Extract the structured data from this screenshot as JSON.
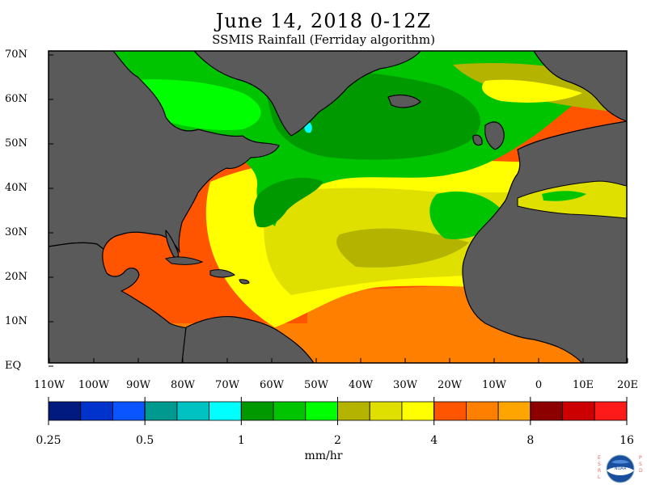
{
  "title": "June 14, 2018 0-12Z",
  "subtitle": "SSMIS Rainfall (Ferriday algorithm)",
  "lat_labels": [
    "70N",
    "60N",
    "50N",
    "40N",
    "30N",
    "20N",
    "10N",
    "EQ"
  ],
  "lon_labels": [
    "110W",
    "100W",
    "90W",
    "80W",
    "70W",
    "60W",
    "50W",
    "40W",
    "30W",
    "20W",
    "10W",
    "0",
    "10E",
    "20E"
  ],
  "colorbar": {
    "ticks": [
      "0.25",
      "0.5",
      "1",
      "2",
      "4",
      "8",
      "16"
    ],
    "units": "mm/hr",
    "colors": [
      "#001a80",
      "#0033cc",
      "#0a55ff",
      "#00998f",
      "#00c2c2",
      "#00ffff",
      "#009900",
      "#00c400",
      "#00ff00",
      "#b3b300",
      "#e0e000",
      "#ffff00",
      "#ff5500",
      "#ff8000",
      "#ffa500",
      "#8c0000",
      "#cc0000",
      "#ff1a1a"
    ]
  },
  "colors": {
    "land": "#5a5a5a",
    "coast": "#000000",
    "background": "#ffffff"
  },
  "logo": {
    "left_letters": "ESRL",
    "right_letters": "PSD",
    "center_text": "NOAA"
  }
}
